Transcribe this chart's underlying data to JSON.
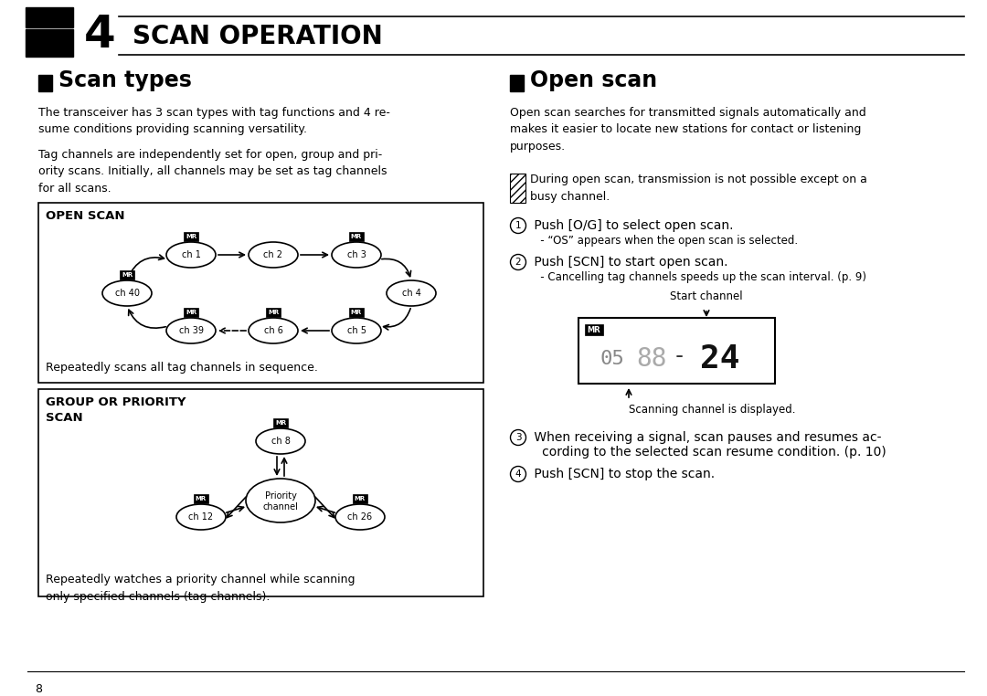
{
  "page_number": "8",
  "chapter_number": "4",
  "chapter_title": "SCAN OPERATION",
  "left_section_title": "Scan types",
  "right_section_title": "Open scan",
  "scan_types_para1": "The transceiver has 3 scan types with tag functions and 4 re-\nsume conditions providing scanning versatility.",
  "scan_types_para2": "Tag channels are independently set for open, group and pri-\nority scans. Initially, all channels may be set as tag channels\nfor all scans.",
  "open_scan_box_title": "OPEN SCAN",
  "open_scan_box_caption": "Repeatedly scans all tag channels in sequence.",
  "group_scan_box_title1": "GROUP OR PRIORITY",
  "group_scan_box_title2": "SCAN",
  "group_scan_box_caption": "Repeatedly watches a priority channel while scanning\nonly specified channels (tag channels).",
  "open_scan_para": "Open scan searches for transmitted signals automatically and\nmakes it easier to locate new stations for contact or listening\npurposes.",
  "warning_text": "During open scan, transmission is not possible except on a\nbusy channel.",
  "step1_main": " Push [O/G] to select open scan.",
  "step1_sub": "   - “OS” appears when the open scan is selected.",
  "step2_main": " Push [SCN] to start open scan.",
  "step2_sub": "   - Cancelling tag channels speeds up the scan interval. (p. 9)",
  "start_channel_label": "Start channel",
  "scanning_channel_label": "Scanning channel is displayed.",
  "step3_main": " When receiving a signal, scan pauses and resumes ac-\n   cording to the selected scan resume condition. (p. 10)",
  "step4_main": " Push [SCN] to stop the scan.",
  "bg_color": "#ffffff",
  "text_color": "#000000"
}
